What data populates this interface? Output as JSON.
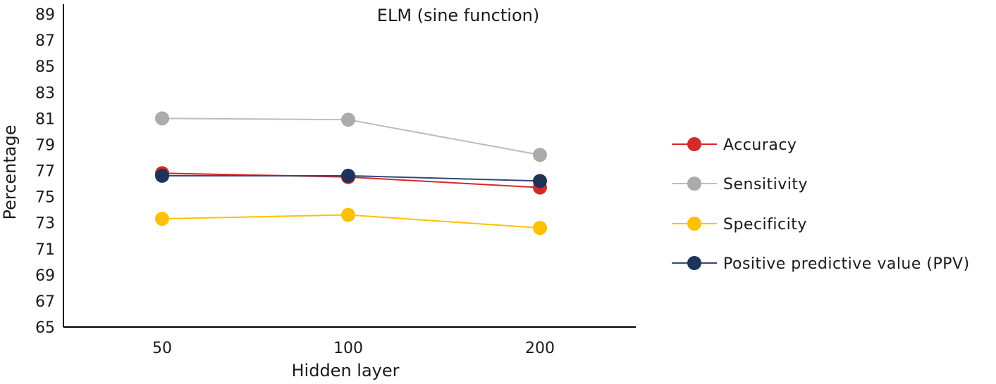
{
  "chart_data": {
    "type": "line",
    "title": "ELM (sine function)",
    "xlabel": "Hidden layer",
    "ylabel": "Percentage",
    "categories": [
      "50",
      "100",
      "200"
    ],
    "ylim": [
      65,
      89
    ],
    "yticks": [
      "65",
      "67",
      "69",
      "71",
      "73",
      "75",
      "77",
      "79",
      "81",
      "83",
      "85",
      "87",
      "89"
    ],
    "grid": false,
    "legend_position": "right",
    "series": [
      {
        "name": "Accuracy",
        "values": [
          76.8,
          76.5,
          75.7
        ],
        "color": "#d9262b",
        "marker_color": "#d32a2a"
      },
      {
        "name": "Sensitivity",
        "values": [
          81.0,
          80.9,
          78.2
        ],
        "color": "#bdbdbd",
        "marker_color": "#ababab"
      },
      {
        "name": "Specificity",
        "values": [
          73.3,
          73.6,
          72.6
        ],
        "color": "#ffc000",
        "marker_color": "#ffc000"
      },
      {
        "name": "Positive predictive value (PPV)",
        "values": [
          76.6,
          76.6,
          76.2
        ],
        "color": "#2e4a7a",
        "marker_color": "#1d3358"
      }
    ]
  }
}
